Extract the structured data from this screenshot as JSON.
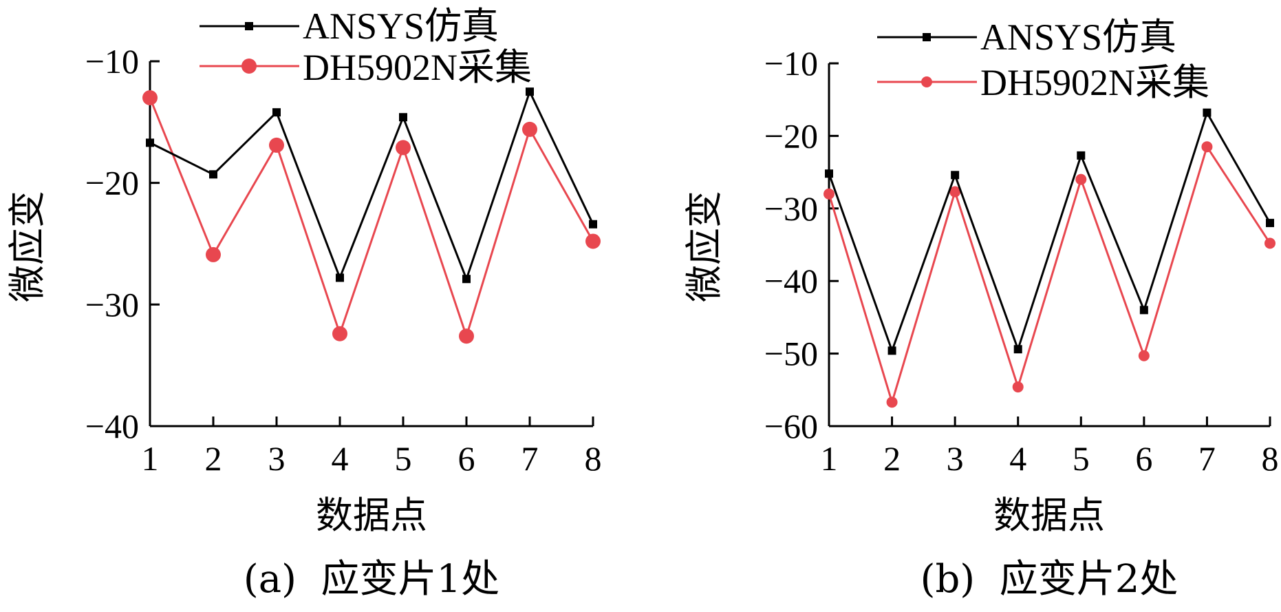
{
  "chart_data": [
    {
      "type": "line",
      "caption": "(a)  应变片1处",
      "xlabel": "数据点",
      "ylabel": "微应变",
      "x": [
        1,
        2,
        3,
        4,
        5,
        6,
        7,
        8
      ],
      "xticks": [
        "1",
        "2",
        "3",
        "4",
        "5",
        "6",
        "7",
        "8"
      ],
      "xlim": [
        1,
        8
      ],
      "ylim": [
        -40,
        -10
      ],
      "yticks": [
        -10,
        -20,
        -30,
        -40
      ],
      "ytick_labels": [
        "−10",
        "−20",
        "−30",
        "−40"
      ],
      "legend_position": "top",
      "series": [
        {
          "name": "ANSYS仿真",
          "color": "#000000",
          "marker": "square",
          "values": [
            -16.7,
            -19.3,
            -14.2,
            -27.8,
            -14.6,
            -27.9,
            -12.5,
            -23.4
          ]
        },
        {
          "name": "DH5902N采集",
          "color": "#e8474f",
          "marker": "circle",
          "values": [
            -13.0,
            -25.9,
            -16.9,
            -32.4,
            -17.1,
            -32.6,
            -15.6,
            -24.8
          ]
        }
      ]
    },
    {
      "type": "line",
      "caption": "(b)  应变片2处",
      "xlabel": "数据点",
      "ylabel": "微应变",
      "x": [
        1,
        2,
        3,
        4,
        5,
        6,
        7,
        8
      ],
      "xticks": [
        "1",
        "2",
        "3",
        "4",
        "5",
        "6",
        "7",
        "8"
      ],
      "xlim": [
        1,
        8
      ],
      "ylim": [
        -60,
        -10
      ],
      "yticks": [
        -10,
        -20,
        -30,
        -40,
        -50,
        -60
      ],
      "ytick_labels": [
        "−10",
        "−20",
        "−30",
        "−40",
        "−50",
        "−60"
      ],
      "legend_position": "top-right",
      "series": [
        {
          "name": "ANSYS仿真",
          "color": "#000000",
          "marker": "square",
          "values": [
            -25.2,
            -49.6,
            -25.4,
            -49.4,
            -22.7,
            -44.0,
            -16.8,
            -32.0
          ]
        },
        {
          "name": "DH5902N采集",
          "color": "#e8474f",
          "marker": "circle",
          "values": [
            -28.0,
            -56.7,
            -27.7,
            -54.6,
            -26.0,
            -50.3,
            -21.5,
            -34.8
          ]
        }
      ]
    }
  ]
}
